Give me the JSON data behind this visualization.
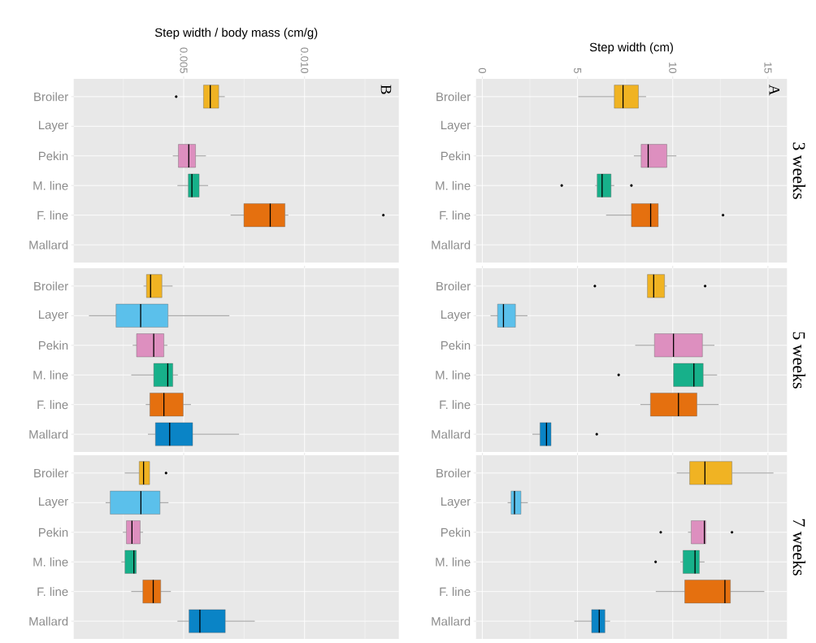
{
  "chart_data": [
    {
      "type": "box",
      "orientation": "horizontal",
      "xlabel": "Step width / body mass (cm/g)",
      "annotations": [
        "B"
      ],
      "categories": [
        "Broiler",
        "Layer",
        "Pekin",
        "M. line",
        "F. line",
        "Mallard"
      ],
      "colors": [
        "#f0b323",
        "#5bc0eb",
        "#dd8fbf",
        "#17b08a",
        "#e5700f",
        "#0a84c6"
      ],
      "xlim": [
        0.00045,
        0.0139
      ],
      "xticks": [
        {
          "value": 0.0025,
          "label": null
        },
        0.005,
        {
          "value": 0.0075,
          "label": null
        },
        {
          "value": 0.01,
          "label": "0.010"
        },
        {
          "value": 0.0125,
          "label": null
        }
      ],
      "grid": true,
      "boxes": [
        {
          "low": 0.00582,
          "q1": 0.00582,
          "median": 0.0061,
          "q3": 0.00645,
          "high": 0.0067,
          "outliers": [
            0.00469
          ]
        },
        null,
        {
          "low": 0.00455,
          "q1": 0.00478,
          "median": 0.00521,
          "q3": 0.00549,
          "high": 0.00592
        },
        {
          "low": 0.00474,
          "q1": 0.00519,
          "median": 0.00534,
          "q3": 0.00564,
          "high": 0.00601
        },
        {
          "low": 0.00694,
          "q1": 0.00749,
          "median": 0.00858,
          "q3": 0.00919,
          "high": 0.00933,
          "outliers": [
            0.01326
          ]
        },
        null
      ]
    },
    {
      "type": "box",
      "orientation": "horizontal",
      "xlabel": "Step width (cm)",
      "y2label": "3 weeks",
      "annotations": [
        "A"
      ],
      "categories": [
        "Broiler",
        "Layer",
        "Pekin",
        "M. line",
        "F. line",
        "Mallard"
      ],
      "colors": [
        "#f0b323",
        "#5bc0eb",
        "#dd8fbf",
        "#17b08a",
        "#e5700f",
        "#0a84c6"
      ],
      "xlim": [
        -0.33,
        16.0
      ],
      "xticks": [
        0,
        {
          "value": 2.5,
          "label": null
        },
        5,
        {
          "value": 7.5,
          "label": null
        },
        10,
        {
          "value": 12.5,
          "label": null
        },
        15
      ],
      "grid": true,
      "boxes": [
        {
          "low": 5.04,
          "q1": 6.93,
          "median": 7.39,
          "q3": 8.2,
          "high": 8.6
        },
        null,
        {
          "low": 7.96,
          "q1": 8.34,
          "median": 8.71,
          "q3": 9.69,
          "high": 10.19
        },
        {
          "low": 5.93,
          "q1": 6.03,
          "median": 6.29,
          "q3": 6.76,
          "high": 6.93,
          "outliers": [
            4.17,
            7.83
          ]
        },
        {
          "low": 6.5,
          "q1": 7.83,
          "median": 8.84,
          "q3": 9.24,
          "high": 9.24,
          "outliers": [
            12.64
          ]
        },
        null
      ]
    },
    {
      "type": "box",
      "orientation": "horizontal",
      "tick_labels": "y",
      "categories": [
        "Broiler",
        "Layer",
        "Pekin",
        "M. line",
        "F. line",
        "Mallard"
      ],
      "colors": [
        "#f0b323",
        "#5bc0eb",
        "#dd8fbf",
        "#17b08a",
        "#e5700f",
        "#0a84c6"
      ],
      "xlim": [
        0.00045,
        0.0139
      ],
      "xticks": [
        {
          "value": 0.0025,
          "label": null
        },
        0.005,
        {
          "value": 0.0075,
          "label": null
        },
        0.01,
        {
          "value": 0.0125,
          "label": null
        }
      ],
      "grid": true,
      "boxes": [
        {
          "low": 0.00334,
          "q1": 0.00346,
          "median": 0.00363,
          "q3": 0.0041,
          "high": 0.00454
        },
        {
          "low": 0.00108,
          "q1": 0.0022,
          "median": 0.00322,
          "q3": 0.00435,
          "high": 0.00689
        },
        {
          "low": 0.00289,
          "q1": 0.00305,
          "median": 0.00376,
          "q3": 0.00418,
          "high": 0.00433
        },
        {
          "low": 0.00283,
          "q1": 0.00376,
          "median": 0.00434,
          "q3": 0.00455,
          "high": 0.00476
        },
        {
          "low": 0.00343,
          "q1": 0.0036,
          "median": 0.00418,
          "q3": 0.00498,
          "high": 0.0053
        },
        {
          "low": 0.00352,
          "q1": 0.00383,
          "median": 0.00442,
          "q3": 0.00537,
          "high": 0.00729
        }
      ]
    },
    {
      "type": "box",
      "orientation": "horizontal",
      "tick_labels": "y",
      "y2label": "5 weeks",
      "categories": [
        "Broiler",
        "Layer",
        "Pekin",
        "M. line",
        "F. line",
        "Mallard"
      ],
      "colors": [
        "#f0b323",
        "#5bc0eb",
        "#dd8fbf",
        "#17b08a",
        "#e5700f",
        "#0a84c6"
      ],
      "xlim": [
        -0.33,
        16.0
      ],
      "xticks": [
        0,
        {
          "value": 2.5,
          "label": null
        },
        5,
        {
          "value": 7.5,
          "label": null
        },
        10,
        {
          "value": 12.5,
          "label": null
        },
        15
      ],
      "grid": true,
      "boxes": [
        {
          "low": 8.67,
          "q1": 8.67,
          "median": 9.0,
          "q3": 9.57,
          "high": 9.69,
          "outliers": [
            5.91,
            11.7
          ]
        },
        {
          "low": 0.43,
          "q1": 0.8,
          "median": 1.11,
          "q3": 1.74,
          "high": 2.37
        },
        {
          "low": 8.03,
          "q1": 9.04,
          "median": 10.04,
          "q3": 11.56,
          "high": 12.19
        },
        {
          "low": 10.04,
          "q1": 10.04,
          "median": 11.11,
          "q3": 11.6,
          "high": 12.33,
          "outliers": [
            7.16
          ]
        },
        {
          "low": 8.3,
          "q1": 8.83,
          "median": 10.3,
          "q3": 11.27,
          "high": 12.41
        },
        {
          "low": 2.63,
          "q1": 3.03,
          "median": 3.37,
          "q3": 3.61,
          "high": 3.61,
          "outliers": [
            6.01
          ]
        }
      ]
    },
    {
      "type": "box",
      "orientation": "horizontal",
      "tick_labels": "y",
      "categories": [
        "Broiler",
        "Layer",
        "Pekin",
        "M. line",
        "F. line",
        "Mallard"
      ],
      "colors": [
        "#f0b323",
        "#5bc0eb",
        "#dd8fbf",
        "#17b08a",
        "#e5700f",
        "#0a84c6"
      ],
      "xlim": [
        0.00045,
        0.0139
      ],
      "xticks": [
        {
          "value": 0.0025,
          "label": null
        },
        0.005,
        {
          "value": 0.0075,
          "label": null
        },
        0.01,
        {
          "value": 0.0125,
          "label": null
        }
      ],
      "grid": true,
      "boxes": [
        {
          "low": 0.00256,
          "q1": 0.00316,
          "median": 0.00334,
          "q3": 0.00359,
          "high": 0.00359,
          "outliers": [
            0.00427
          ]
        },
        {
          "low": 0.00177,
          "q1": 0.00196,
          "median": 0.00323,
          "q3": 0.00402,
          "high": 0.00437
        },
        {
          "low": 0.00248,
          "q1": 0.00263,
          "median": 0.00286,
          "q3": 0.0032,
          "high": 0.00332
        },
        {
          "low": 0.00242,
          "q1": 0.00257,
          "median": 0.00294,
          "q3": 0.00304,
          "high": 0.00304
        },
        {
          "low": 0.00283,
          "q1": 0.00331,
          "median": 0.00374,
          "q3": 0.00405,
          "high": 0.00447
        },
        {
          "low": 0.00474,
          "q1": 0.00522,
          "median": 0.00567,
          "q3": 0.00672,
          "high": 0.00794
        }
      ]
    },
    {
      "type": "box",
      "orientation": "horizontal",
      "tick_labels": "y",
      "y2label": "7 weeks",
      "categories": [
        "Broiler",
        "Layer",
        "Pekin",
        "M. line",
        "F. line",
        "Mallard"
      ],
      "colors": [
        "#f0b323",
        "#5bc0eb",
        "#dd8fbf",
        "#17b08a",
        "#e5700f",
        "#0a84c6"
      ],
      "xlim": [
        -0.33,
        16.0
      ],
      "xticks": [
        0,
        {
          "value": 2.5,
          "label": null
        },
        5,
        {
          "value": 7.5,
          "label": null
        },
        10,
        {
          "value": 12.5,
          "label": null
        },
        15
      ],
      "grid": true,
      "boxes": [
        {
          "low": 10.21,
          "q1": 10.89,
          "median": 11.69,
          "q3": 13.11,
          "high": 15.29
        },
        {
          "low": 1.33,
          "q1": 1.51,
          "median": 1.69,
          "q3": 2.03,
          "high": 2.39
        },
        {
          "low": 10.8,
          "q1": 10.97,
          "median": 11.66,
          "q3": 11.73,
          "high": 11.73,
          "outliers": [
            9.37,
            13.11
          ]
        },
        {
          "low": 10.4,
          "q1": 10.54,
          "median": 11.17,
          "q3": 11.4,
          "high": 11.67,
          "outliers": [
            9.1
          ]
        },
        {
          "low": 9.11,
          "q1": 10.63,
          "median": 12.74,
          "q3": 13.03,
          "high": 14.81
        },
        {
          "low": 4.83,
          "q1": 5.74,
          "median": 6.14,
          "q3": 6.44,
          "high": 6.71
        }
      ]
    }
  ]
}
